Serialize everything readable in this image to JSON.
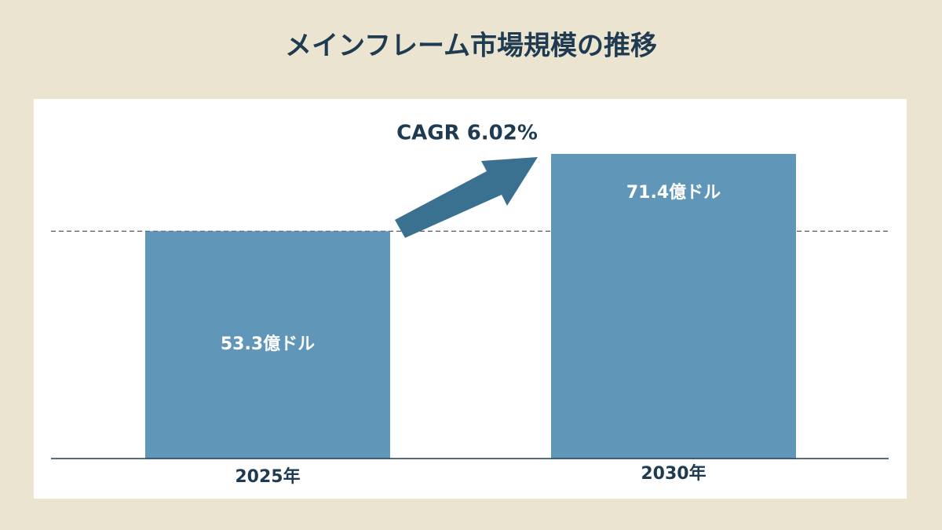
{
  "chart_data": {
    "type": "bar",
    "title": "メインフレーム市場規模の推移",
    "annotation": "CAGR 6.02%",
    "categories": [
      "2025年",
      "2030年"
    ],
    "values": [
      53.3,
      71.4
    ],
    "value_labels": [
      "53.3億ドル",
      "71.4億ドル"
    ],
    "color": "#6097b8"
  }
}
